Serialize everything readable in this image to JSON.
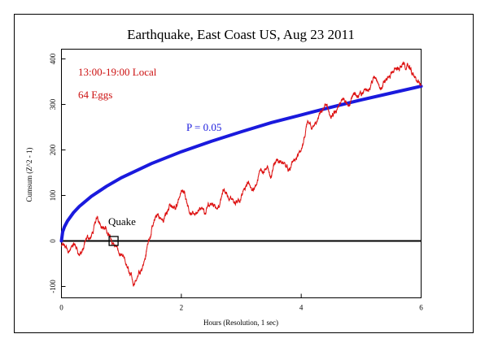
{
  "chart_data": {
    "type": "line",
    "title": "Earthquake, East Coast US, Aug 23 2011",
    "xlabel": "Hours (Resolution, 1 sec)",
    "ylabel": "Cumsum (Z^2 - 1)",
    "xlim": [
      0,
      6
    ],
    "ylim": [
      -130,
      420
    ],
    "x_ticks": [
      "0",
      "2",
      "4",
      "6"
    ],
    "y_ticks": [
      "-100",
      "0",
      "100",
      "200",
      "300",
      "400"
    ],
    "grid": false,
    "annotations": {
      "time_range": "13:00-19:00 Local",
      "eggs": "64 Eggs",
      "significance": "P = 0.05",
      "event": "Quake"
    },
    "quake_marker": {
      "x": 0.87,
      "y": 0
    },
    "colors": {
      "cumsum": "#dd1111",
      "significance": "#1a1add",
      "baseline": "#000000",
      "text_annotation": "#cc1111"
    },
    "series": [
      {
        "role": "cumsum",
        "x": [
          0,
          0.1,
          0.2,
          0.3,
          0.4,
          0.5,
          0.6,
          0.7,
          0.8,
          0.9,
          1.0,
          1.1,
          1.2,
          1.3,
          1.4,
          1.5,
          1.6,
          1.7,
          1.8,
          1.9,
          2.0,
          2.1,
          2.2,
          2.3,
          2.4,
          2.5,
          2.6,
          2.7,
          2.8,
          2.9,
          3.0,
          3.1,
          3.2,
          3.3,
          3.4,
          3.5,
          3.6,
          3.7,
          3.8,
          3.9,
          4.0,
          4.1,
          4.2,
          4.3,
          4.4,
          4.5,
          4.6,
          4.7,
          4.8,
          4.9,
          5.0,
          5.1,
          5.2,
          5.3,
          5.4,
          5.5,
          5.6,
          5.7,
          5.8,
          5.9,
          6.0
        ],
        "values": [
          -10,
          -20,
          -5,
          -30,
          0,
          10,
          50,
          30,
          10,
          -10,
          -30,
          -60,
          -100,
          -70,
          -40,
          20,
          60,
          40,
          80,
          70,
          110,
          80,
          60,
          70,
          60,
          80,
          70,
          110,
          90,
          80,
          100,
          130,
          110,
          150,
          160,
          140,
          180,
          170,
          160,
          180,
          200,
          260,
          250,
          280,
          300,
          270,
          290,
          310,
          300,
          320,
          320,
          330,
          360,
          340,
          350,
          370,
          380,
          390,
          380,
          360,
          340
        ]
      },
      {
        "role": "significance",
        "name": "P = 0.05",
        "x": [
          0,
          0.02,
          0.05,
          0.1,
          0.2,
          0.3,
          0.5,
          0.75,
          1.0,
          1.5,
          2.0,
          2.5,
          3.0,
          3.5,
          4.0,
          4.5,
          5.0,
          5.5,
          6.0
        ],
        "values": [
          0,
          20,
          31,
          44,
          62,
          76,
          98,
          120,
          139,
          170,
          196,
          219,
          240,
          260,
          277,
          294,
          310,
          325,
          340
        ]
      }
    ]
  }
}
